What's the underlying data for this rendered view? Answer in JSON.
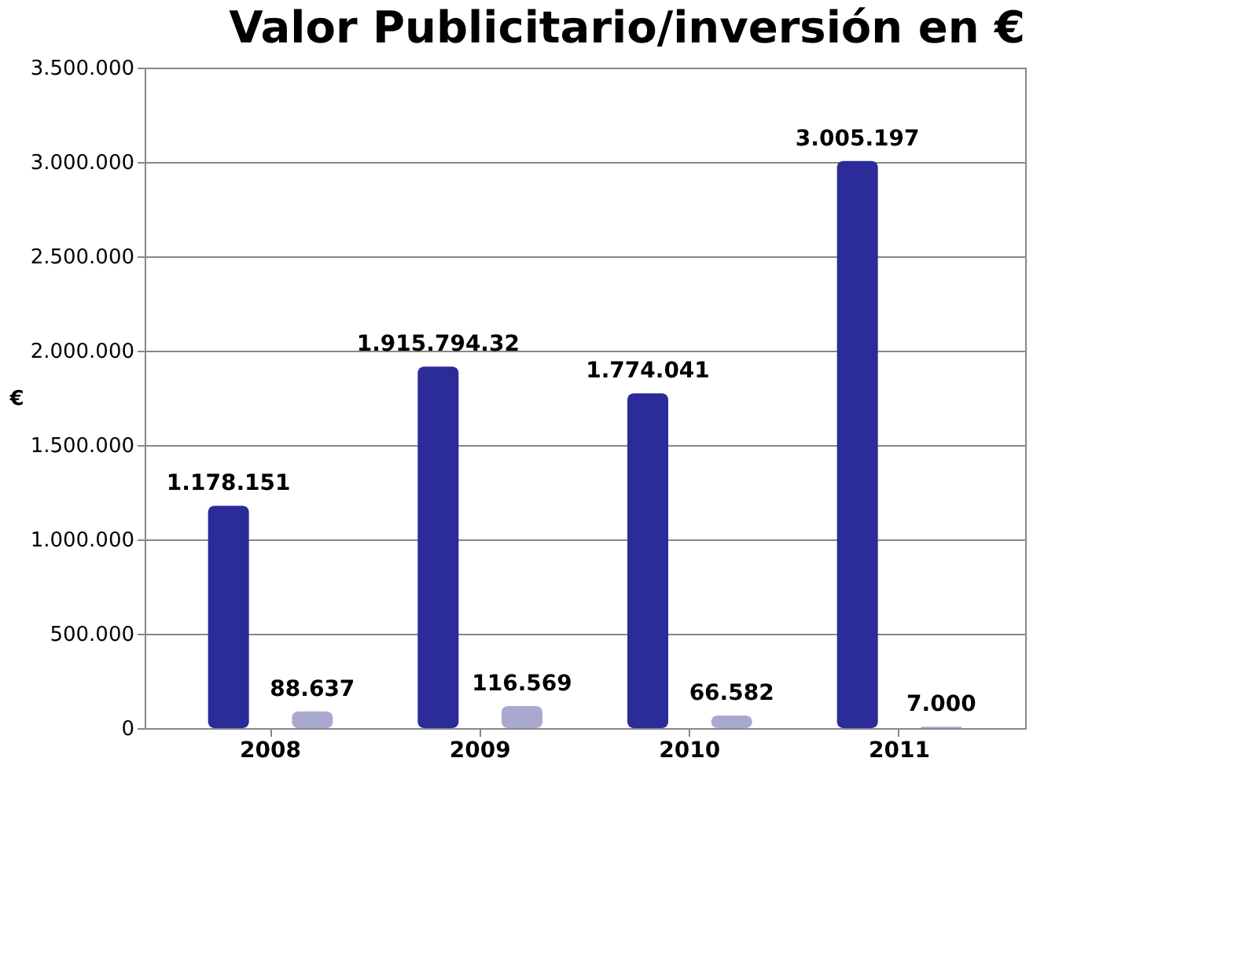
{
  "chart_data": {
    "type": "bar",
    "title": "Valor Publicitario/inversión en €",
    "ylabel": "€",
    "categories": [
      "2008",
      "2009",
      "2010",
      "2011"
    ],
    "series": [
      {
        "color": "#2b2b9a",
        "values": [
          1178151,
          1915794.32,
          1774041,
          3005197
        ],
        "value_labels": [
          "1.178.151",
          "1.915.794.32",
          "1.774.041",
          "3.005.197"
        ]
      },
      {
        "color": "#a9a9cf",
        "values": [
          88637,
          116569,
          66582,
          7000
        ],
        "value_labels": [
          "88.637",
          "116.569",
          "66.582",
          "7.000"
        ]
      }
    ],
    "ylim": [
      0,
      3500000
    ],
    "yticks": [
      {
        "value": 0,
        "label": "0"
      },
      {
        "value": 500000,
        "label": "500.000"
      },
      {
        "value": 1000000,
        "label": "1.000.000"
      },
      {
        "value": 1500000,
        "label": "1.500.000"
      },
      {
        "value": 2000000,
        "label": "2.000.000"
      },
      {
        "value": 2500000,
        "label": "2.500.000"
      },
      {
        "value": 3000000,
        "label": "3.000.000"
      },
      {
        "value": 3500000,
        "label": "3.500.000"
      }
    ],
    "grid": "y"
  }
}
